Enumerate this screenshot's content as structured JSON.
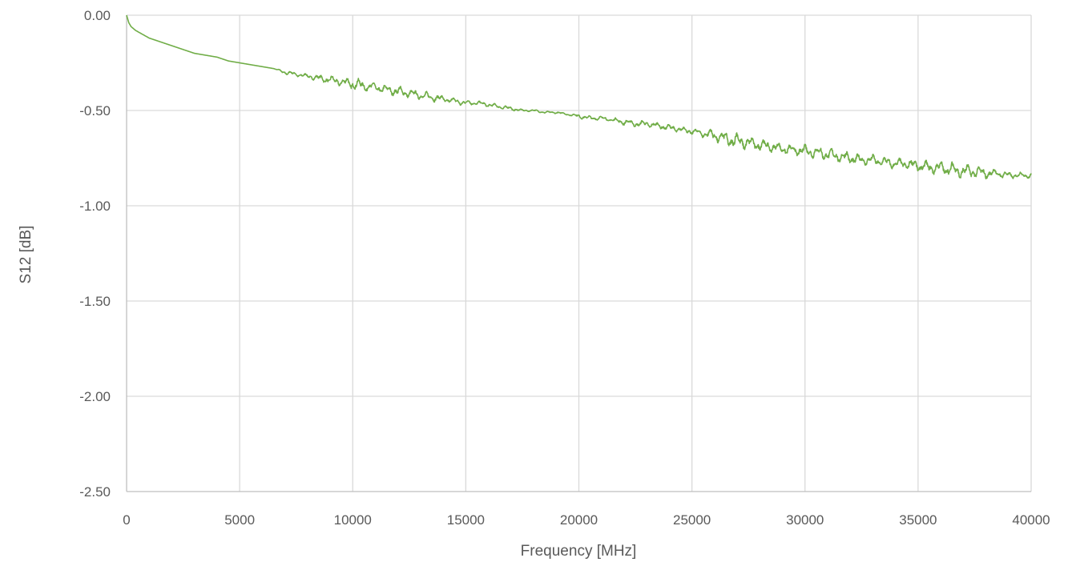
{
  "chart_data": {
    "type": "line",
    "title": "",
    "xlabel": "Frequency [MHz]",
    "ylabel": "S12 [dB]",
    "xlim": [
      0,
      40000
    ],
    "ylim": [
      -2.5,
      0
    ],
    "x_ticks": [
      0,
      5000,
      10000,
      15000,
      20000,
      25000,
      30000,
      35000,
      40000
    ],
    "x_tick_labels": [
      "0",
      "5000",
      "10000",
      "15000",
      "20000",
      "25000",
      "30000",
      "35000",
      "40000"
    ],
    "y_ticks": [
      0,
      -0.5,
      -1,
      -1.5,
      -2,
      -2.5
    ],
    "y_tick_labels": [
      "0.00",
      "-0.50",
      "-1.00",
      "-1.50",
      "-2.00",
      "-2.50"
    ],
    "grid": true,
    "legend": "none",
    "series": [
      {
        "color": "#70ad47",
        "x": [
          0,
          100,
          200,
          400,
          700,
          1000,
          1500,
          2000,
          2500,
          3000,
          3500,
          4000,
          4500,
          5000,
          5500,
          6000,
          6500,
          7000,
          7500,
          8000,
          8500,
          9000,
          9500,
          10000,
          10500,
          11000,
          11500,
          12000,
          12500,
          13000,
          13500,
          14000,
          14500,
          15000,
          15500,
          16000,
          16500,
          17000,
          17500,
          18000,
          18500,
          19000,
          19500,
          20000,
          20500,
          21000,
          21500,
          22000,
          22500,
          23000,
          23500,
          24000,
          24500,
          25000,
          25500,
          26000,
          26500,
          27000,
          27500,
          28000,
          28500,
          29000,
          29500,
          30000,
          30500,
          31000,
          31500,
          32000,
          32500,
          33000,
          33500,
          34000,
          34500,
          35000,
          35500,
          36000,
          36500,
          37000,
          37500,
          38000,
          38500,
          39000,
          39500,
          40000
        ],
        "y": [
          0.0,
          -0.04,
          -0.06,
          -0.08,
          -0.1,
          -0.12,
          -0.14,
          -0.16,
          -0.18,
          -0.2,
          -0.21,
          -0.22,
          -0.24,
          -0.25,
          -0.26,
          -0.27,
          -0.28,
          -0.3,
          -0.31,
          -0.32,
          -0.33,
          -0.34,
          -0.35,
          -0.36,
          -0.37,
          -0.38,
          -0.39,
          -0.4,
          -0.41,
          -0.42,
          -0.43,
          -0.44,
          -0.45,
          -0.46,
          -0.46,
          -0.47,
          -0.48,
          -0.49,
          -0.5,
          -0.5,
          -0.51,
          -0.51,
          -0.52,
          -0.53,
          -0.54,
          -0.54,
          -0.55,
          -0.56,
          -0.57,
          -0.57,
          -0.58,
          -0.59,
          -0.6,
          -0.61,
          -0.62,
          -0.63,
          -0.65,
          -0.66,
          -0.67,
          -0.68,
          -0.69,
          -0.7,
          -0.71,
          -0.71,
          -0.72,
          -0.73,
          -0.74,
          -0.75,
          -0.76,
          -0.76,
          -0.77,
          -0.78,
          -0.78,
          -0.79,
          -0.8,
          -0.8,
          -0.81,
          -0.82,
          -0.82,
          -0.83,
          -0.83,
          -0.84,
          -0.84,
          -0.84
        ],
        "ripple": [
          0.0,
          0.0,
          0.0,
          0.0,
          0.0,
          0.0,
          0.0,
          0.0,
          0.0,
          0.0,
          0.0,
          0.0,
          0.0,
          0.0,
          0.0,
          0.0,
          0.0,
          0.01,
          0.01,
          0.01,
          0.015,
          0.02,
          0.02,
          0.03,
          0.025,
          0.025,
          0.02,
          0.025,
          0.02,
          0.02,
          0.02,
          0.015,
          0.015,
          0.015,
          0.01,
          0.01,
          0.01,
          0.01,
          0.005,
          0.005,
          0.005,
          0.005,
          0.005,
          0.01,
          0.01,
          0.01,
          0.01,
          0.015,
          0.015,
          0.015,
          0.015,
          0.015,
          0.015,
          0.015,
          0.02,
          0.03,
          0.035,
          0.04,
          0.03,
          0.03,
          0.025,
          0.025,
          0.025,
          0.03,
          0.03,
          0.03,
          0.03,
          0.03,
          0.025,
          0.025,
          0.025,
          0.025,
          0.025,
          0.03,
          0.03,
          0.03,
          0.035,
          0.035,
          0.03,
          0.025,
          0.02,
          0.015,
          0.015,
          0.015
        ]
      }
    ]
  }
}
